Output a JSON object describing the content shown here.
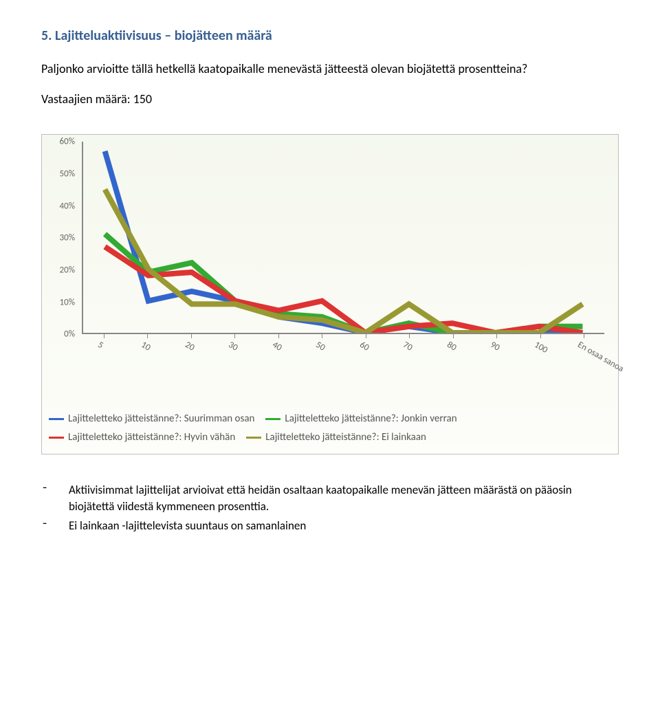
{
  "heading": "5.  Lajitteluaktiivisuus – biojätteen määrä",
  "paragraph": "Paljonko arvioitte tällä hetkellä kaatopaikalle menevästä jätteestä olevan biojätettä prosentteina?",
  "respondents": "Vastaajien määrä: 150",
  "chart": {
    "type": "line",
    "background_gradient_top": "#f5f8ee",
    "background_gradient_bottom": "#fdfdf9",
    "border_color": "#c0c0c0",
    "axis_color": "#888888",
    "tick_fontsize": 13,
    "tick_color": "#666666",
    "ylim": [
      0,
      60
    ],
    "ytick_step": 10,
    "y_ticks": [
      "0%",
      "10%",
      "20%",
      "30%",
      "40%",
      "50%",
      "60%"
    ],
    "categories": [
      "5",
      "10",
      "20",
      "30",
      "40",
      "50",
      "60",
      "70",
      "80",
      "90",
      "100",
      "En osaa sanoa"
    ],
    "x_label_rotation": 30,
    "line_width": 2,
    "series": [
      {
        "key": "s0",
        "label": "Lajitteletteko jätteistänne?: Suurimman osan",
        "color": "#3366cc",
        "values": [
          57,
          10,
          13,
          10,
          5,
          3,
          0,
          2,
          0,
          0,
          0,
          0
        ]
      },
      {
        "key": "s1",
        "label": "Lajitteletteko jätteistänne?: Jonkin verran",
        "color": "#33aa33",
        "values": [
          31,
          19,
          22,
          10,
          6,
          5,
          0,
          3,
          0,
          0,
          2,
          2
        ]
      },
      {
        "key": "s2",
        "label": "Lajitteletteko jätteistänne?: Hyvin vähän",
        "color": "#dd3333",
        "values": [
          27,
          18,
          19,
          10,
          7,
          10,
          0,
          2,
          3,
          0,
          2,
          0
        ]
      },
      {
        "key": "s3",
        "label": "Lajitteletteko jätteistänne?: Ei lainkaan",
        "color": "#999933",
        "values": [
          45,
          20,
          9,
          9,
          5,
          4,
          0,
          9,
          0,
          0,
          0,
          9
        ]
      }
    ]
  },
  "bullets": [
    "Aktiivisimmat lajittelijat arvioivat että heidän osaltaan kaatopaikalle menevän jätteen määrästä on pääosin biojätettä viidestä kymmeneen prosenttia.",
    "Ei lainkaan -lajittelevista suuntaus on samanlainen"
  ]
}
